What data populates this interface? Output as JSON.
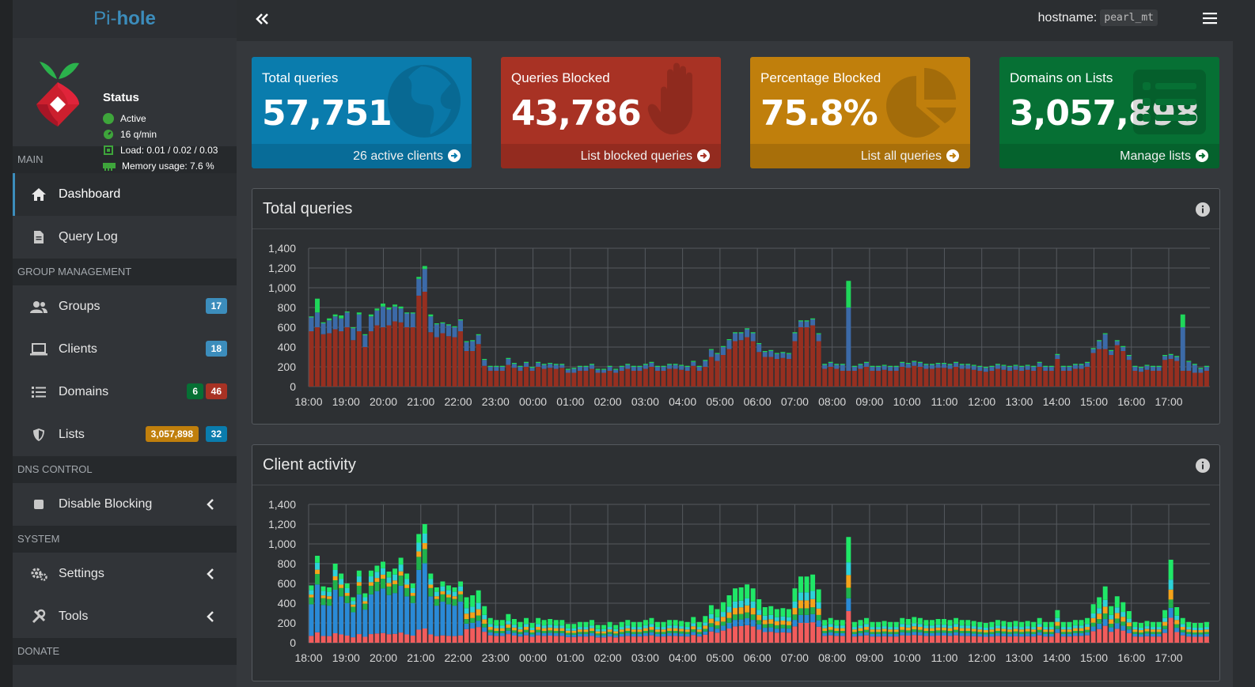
{
  "brand": {
    "pre": "Pi-",
    "post": "hole"
  },
  "status": {
    "title": "Status",
    "active": "Active",
    "rate": "16 q/min",
    "load": "Load: 0.01 / 0.02 / 0.03",
    "memory": "Memory usage: 7.6 %"
  },
  "sidebar": {
    "main_label": "MAIN",
    "dashboard": "Dashboard",
    "query_log": "Query Log",
    "group_label": "GROUP MANAGEMENT",
    "groups": "Groups",
    "groups_badge": "17",
    "clients": "Clients",
    "clients_badge": "18",
    "domains": "Domains",
    "domains_badge_allow": "6",
    "domains_badge_deny": "46",
    "lists": "Lists",
    "lists_badge_domains": "3,057,898",
    "lists_badge_count": "32",
    "dns_label": "DNS CONTROL",
    "disable_blocking": "Disable Blocking",
    "system_label": "SYSTEM",
    "settings": "Settings",
    "tools": "Tools",
    "donate_label": "DONATE"
  },
  "topbar": {
    "hostname_label": "hostname:",
    "hostname_value": "pearl_mt"
  },
  "cards": [
    {
      "label": "Total queries",
      "value": "57,751",
      "footer": "26 active clients",
      "color": "#0a7cad"
    },
    {
      "label": "Queries Blocked",
      "value": "43,786",
      "footer": "List blocked queries",
      "color": "#a83224"
    },
    {
      "label": "Percentage Blocked",
      "value": "75.8%",
      "footer": "List all queries",
      "color": "#c07f0c"
    },
    {
      "label": "Domains on Lists",
      "value": "3,057,898",
      "footer": "Manage lists",
      "color": "#067034"
    }
  ],
  "panels": {
    "total_queries_title": "Total queries",
    "client_activity_title": "Client activity"
  },
  "chart_data": [
    {
      "type": "bar",
      "title": "Total queries",
      "stacked": true,
      "x_ticks": [
        "18:00",
        "19:00",
        "20:00",
        "21:00",
        "22:00",
        "23:00",
        "00:00",
        "01:00",
        "02:00",
        "03:00",
        "04:00",
        "05:00",
        "06:00",
        "07:00",
        "08:00",
        "09:00",
        "10:00",
        "11:00",
        "12:00",
        "13:00",
        "14:00",
        "15:00",
        "16:00",
        "17:00"
      ],
      "ylim": [
        0,
        1400
      ],
      "y_ticks": [
        0,
        200,
        400,
        600,
        800,
        1000,
        1200,
        1400
      ],
      "series_colors": {
        "blocked": "#962f20",
        "cached": "#3c6aa8",
        "forwarded": "#1fd65a"
      },
      "blocked": [
        560,
        600,
        530,
        540,
        580,
        560,
        600,
        470,
        560,
        400,
        560,
        620,
        600,
        620,
        660,
        650,
        600,
        600,
        920,
        960,
        550,
        500,
        540,
        510,
        500,
        560,
        360,
        360,
        430,
        210,
        160,
        160,
        160,
        220,
        190,
        160,
        200,
        160,
        200,
        180,
        190,
        180,
        190,
        140,
        140,
        160,
        160,
        180,
        140,
        140,
        160,
        140,
        160,
        180,
        160,
        160,
        180,
        200,
        160,
        160,
        180,
        180,
        170,
        160,
        210,
        160,
        200,
        300,
        260,
        320,
        380,
        460,
        470,
        500,
        460,
        350,
        300,
        300,
        280,
        290,
        280,
        460,
        600,
        600,
        620,
        460,
        180,
        200,
        180,
        160,
        160,
        160,
        180,
        200,
        160,
        160,
        170,
        160,
        160,
        200,
        190,
        210,
        200,
        180,
        180,
        190,
        190,
        180,
        200,
        180,
        180,
        170,
        160,
        150,
        160,
        180,
        170,
        160,
        170,
        160,
        170,
        160,
        200,
        160,
        160,
        280,
        160,
        160,
        180,
        180,
        200,
        340,
        380,
        380,
        320,
        420,
        360,
        270,
        160,
        150,
        170,
        160,
        160,
        270,
        280,
        260,
        160,
        160,
        140,
        140,
        160
      ],
      "cached": [
        140,
        150,
        110,
        130,
        130,
        130,
        150,
        120,
        170,
        120,
        150,
        150,
        210,
        160,
        150,
        140,
        140,
        140,
        170,
        230,
        160,
        130,
        100,
        110,
        100,
        110,
        90,
        100,
        90,
        60,
        40,
        40,
        40,
        60,
        40,
        40,
        40,
        30,
        40,
        40,
        40,
        40,
        30,
        30,
        40,
        40,
        40,
        40,
        30,
        30,
        40,
        30,
        40,
        40,
        40,
        40,
        40,
        40,
        40,
        40,
        40,
        40,
        40,
        40,
        40,
        40,
        60,
        70,
        70,
        80,
        90,
        80,
        70,
        80,
        80,
        80,
        50,
        60,
        50,
        50,
        50,
        80,
        60,
        60,
        60,
        70,
        40,
        40,
        40,
        60,
        640,
        40,
        40,
        40,
        40,
        40,
        40,
        40,
        40,
        40,
        40,
        40,
        40,
        40,
        40,
        40,
        40,
        40,
        40,
        40,
        40,
        40,
        40,
        40,
        40,
        40,
        40,
        40,
        40,
        40,
        40,
        40,
        40,
        40,
        40,
        40,
        40,
        40,
        40,
        40,
        40,
        40,
        80,
        150,
        40,
        40,
        40,
        40,
        40,
        40,
        40,
        40,
        40,
        40,
        40,
        40,
        440,
        90,
        80,
        40,
        40
      ],
      "forwarded": [
        10,
        140,
        10,
        20,
        20,
        30,
        10,
        10,
        20,
        10,
        20,
        20,
        30,
        20,
        20,
        20,
        10,
        10,
        20,
        30,
        20,
        10,
        10,
        10,
        10,
        10,
        10,
        10,
        10,
        10,
        10,
        10,
        10,
        10,
        10,
        10,
        10,
        10,
        10,
        10,
        10,
        10,
        10,
        10,
        10,
        10,
        10,
        10,
        10,
        10,
        10,
        10,
        10,
        10,
        10,
        10,
        10,
        10,
        10,
        10,
        10,
        10,
        10,
        10,
        10,
        10,
        10,
        10,
        10,
        10,
        10,
        10,
        10,
        10,
        10,
        10,
        10,
        10,
        10,
        10,
        10,
        10,
        10,
        10,
        10,
        10,
        10,
        10,
        10,
        10,
        270,
        10,
        10,
        10,
        10,
        10,
        10,
        10,
        10,
        10,
        10,
        10,
        10,
        10,
        10,
        10,
        10,
        10,
        10,
        10,
        10,
        10,
        10,
        10,
        10,
        10,
        10,
        10,
        10,
        10,
        10,
        10,
        10,
        10,
        10,
        10,
        10,
        10,
        10,
        10,
        10,
        10,
        10,
        10,
        10,
        10,
        10,
        10,
        10,
        10,
        10,
        10,
        10,
        10,
        10,
        10,
        130,
        10,
        10,
        10,
        10
      ]
    },
    {
      "type": "bar",
      "title": "Client activity",
      "stacked": true,
      "x_ticks": [
        "18:00",
        "19:00",
        "20:00",
        "21:00",
        "22:00",
        "23:00",
        "00:00",
        "01:00",
        "02:00",
        "03:00",
        "04:00",
        "05:00",
        "06:00",
        "07:00",
        "08:00",
        "09:00",
        "10:00",
        "11:00",
        "12:00",
        "13:00",
        "14:00",
        "15:00",
        "16:00",
        "17:00"
      ],
      "ylim": [
        0,
        1400
      ],
      "y_ticks": [
        0,
        200,
        400,
        600,
        800,
        1000,
        1200,
        1400
      ],
      "series_colors": [
        "#f25c5c",
        "#2a8ad6",
        "#1fb24c",
        "#f5a31a",
        "#2dd2d9",
        "#1fe867"
      ],
      "totals": [
        580,
        880,
        570,
        560,
        800,
        700,
        600,
        460,
        730,
        500,
        730,
        780,
        820,
        720,
        750,
        860,
        700,
        600,
        1100,
        1200,
        700,
        560,
        620,
        580,
        560,
        620,
        460,
        480,
        530,
        370,
        250,
        230,
        230,
        290,
        240,
        210,
        250,
        200,
        250,
        230,
        240,
        230,
        230,
        190,
        190,
        210,
        210,
        230,
        180,
        180,
        210,
        180,
        210,
        230,
        210,
        210,
        230,
        250,
        210,
        210,
        230,
        230,
        220,
        210,
        260,
        210,
        270,
        380,
        340,
        410,
        480,
        550,
        560,
        590,
        550,
        440,
        360,
        370,
        340,
        350,
        340,
        550,
        670,
        670,
        690,
        540,
        230,
        250,
        230,
        230,
        1070,
        210,
        230,
        250,
        210,
        210,
        220,
        210,
        210,
        250,
        240,
        260,
        250,
        230,
        230,
        240,
        240,
        230,
        250,
        230,
        230,
        220,
        210,
        200,
        210,
        230,
        220,
        210,
        220,
        210,
        220,
        210,
        250,
        210,
        210,
        330,
        210,
        210,
        230,
        230,
        250,
        390,
        460,
        570,
        370,
        470,
        410,
        320,
        210,
        200,
        220,
        210,
        210,
        330,
        840,
        360,
        250,
        210,
        200,
        200,
        210
      ]
    }
  ]
}
